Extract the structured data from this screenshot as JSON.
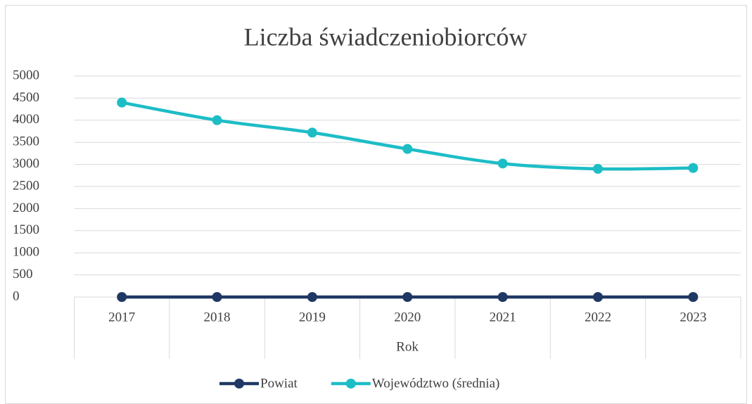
{
  "chart_data": {
    "type": "line",
    "title": "Liczba świadczeniobiorców",
    "x_label": "Rok",
    "categories": [
      "2017",
      "2018",
      "2019",
      "2020",
      "2021",
      "2022",
      "2023"
    ],
    "series": [
      {
        "name": "Powiat",
        "color": "#1f3864",
        "values": [
          0,
          0,
          0,
          0,
          0,
          0,
          0
        ]
      },
      {
        "name": "Województwo (średnia)",
        "color": "#1dbdc6",
        "values": [
          4400,
          4000,
          3720,
          3350,
          3020,
          2900,
          2920
        ]
      }
    ],
    "ylim": [
      0,
      5000
    ],
    "yticks": [
      0,
      500,
      1000,
      1500,
      2000,
      2500,
      3000,
      3500,
      4000,
      4500,
      5000
    ],
    "grid": true,
    "legend": "bottom"
  }
}
